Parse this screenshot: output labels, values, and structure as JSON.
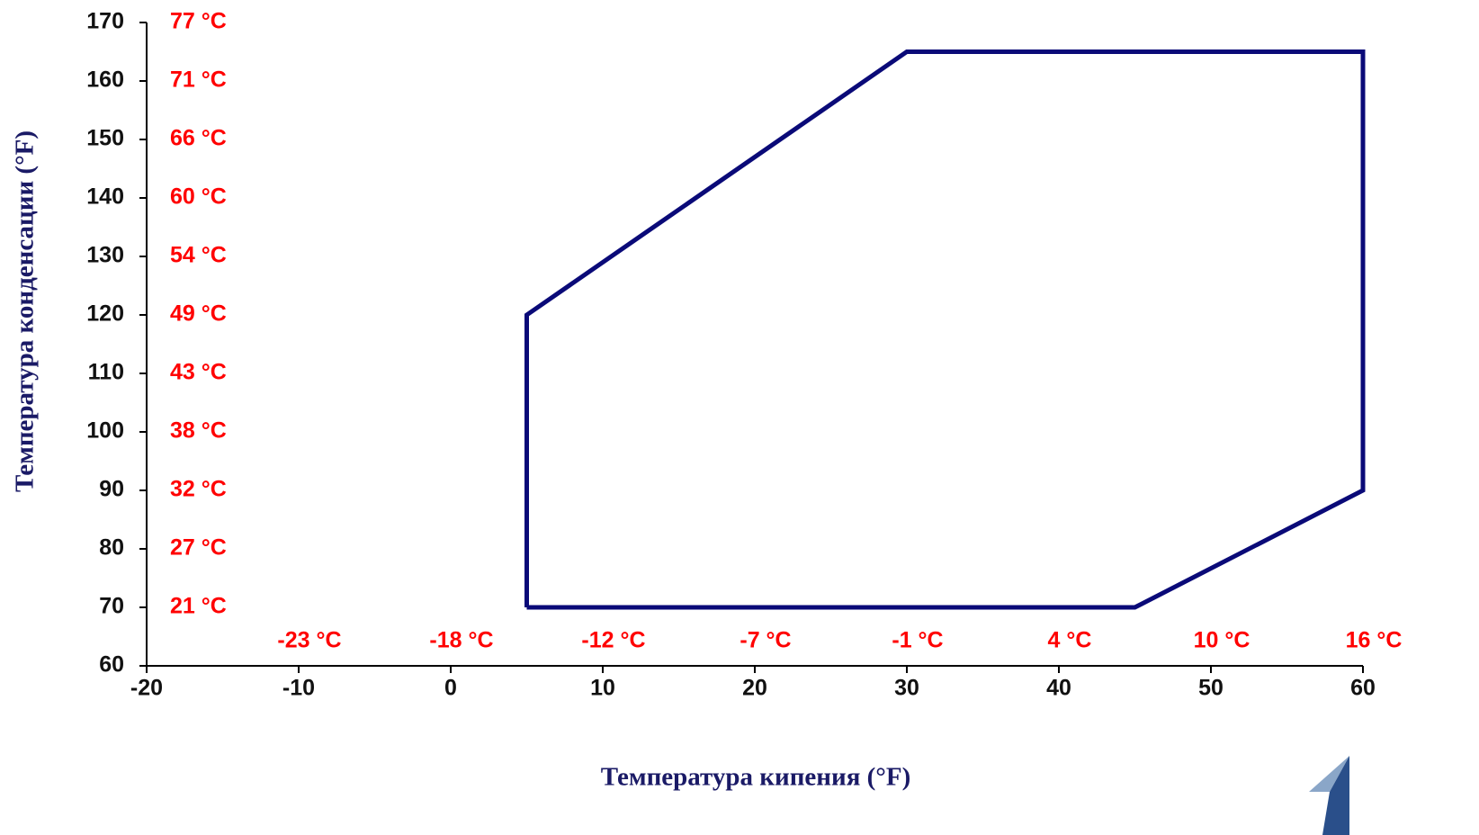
{
  "chart_data": {
    "type": "line",
    "xlabel": "Температура кипения (°F)",
    "ylabel": "Температура конденсации (°F)",
    "series": [
      {
        "color": "#0a0a78",
        "x": [
          5,
          5,
          30,
          60,
          60,
          45,
          5
        ],
        "values": [
          70,
          120,
          165,
          165,
          90,
          70,
          70
        ]
      }
    ],
    "xlim": [
      -20,
      60
    ],
    "xticks": [
      -20,
      -10,
      0,
      10,
      20,
      30,
      40,
      50,
      60
    ],
    "ylim": [
      60,
      170
    ],
    "yticks": [
      60,
      70,
      80,
      90,
      100,
      110,
      120,
      130,
      140,
      150,
      160,
      170
    ],
    "xticks_celsius": [
      {
        "value": -10,
        "label": "-23 °C"
      },
      {
        "value": 0,
        "label": "-18 °C"
      },
      {
        "value": 10,
        "label": "-12 °C"
      },
      {
        "value": 20,
        "label": "-7 °C"
      },
      {
        "value": 30,
        "label": "-1 °C"
      },
      {
        "value": 40,
        "label": "4 °C"
      },
      {
        "value": 50,
        "label": "10 °C"
      },
      {
        "value": 60,
        "label": "16 °C"
      }
    ],
    "yticks_celsius": [
      {
        "value": 70,
        "label": "21 °C"
      },
      {
        "value": 80,
        "label": "27 °C"
      },
      {
        "value": 90,
        "label": "32 °C"
      },
      {
        "value": 100,
        "label": "38 °C"
      },
      {
        "value": 110,
        "label": "43 °C"
      },
      {
        "value": 120,
        "label": "49 °C"
      },
      {
        "value": 130,
        "label": "54 °C"
      },
      {
        "value": 140,
        "label": "60 °C"
      },
      {
        "value": 150,
        "label": "66 °C"
      },
      {
        "value": 160,
        "label": "71 °C"
      },
      {
        "value": 170,
        "label": "77 °C"
      }
    ],
    "celsius_color": "#ff0000"
  }
}
